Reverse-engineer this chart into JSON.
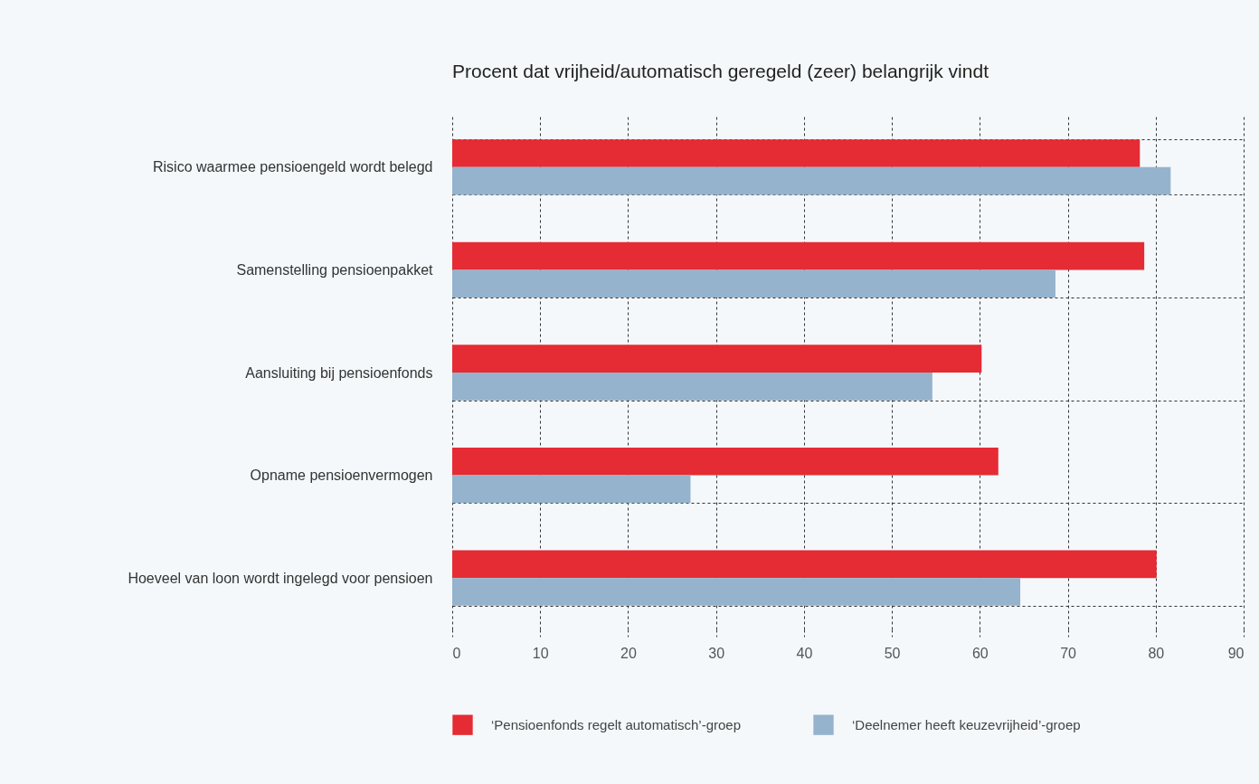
{
  "chart_data": {
    "type": "bar",
    "orientation": "horizontal",
    "title": "Procent dat vrijheid/automatisch geregeld (zeer) belangrijk vindt",
    "categories": [
      "Risico waarmee pensioengeld wordt belegd",
      "Samenstelling pensioenpakket",
      "Aansluiting bij pensioenfonds",
      "Opname pensioenvermogen",
      "Hoeveel van loon wordt ingelegd voor pensioen"
    ],
    "series": [
      {
        "name": "‘Pensioenfonds regelt automatisch’-groep",
        "color": "#e52b33",
        "values": [
          78.2,
          78.7,
          60.2,
          62.1,
          80.1
        ]
      },
      {
        "name": "‘Deelnemer heeft keuzevrijheid’-groep",
        "color": "#95b3cc",
        "values": [
          81.7,
          68.6,
          54.6,
          27.1,
          64.6
        ]
      }
    ],
    "xlim": [
      0,
      90
    ],
    "xticks": [
      0,
      10,
      20,
      30,
      40,
      50,
      60,
      70,
      80,
      90
    ],
    "grid": true,
    "legend": "bottom"
  }
}
